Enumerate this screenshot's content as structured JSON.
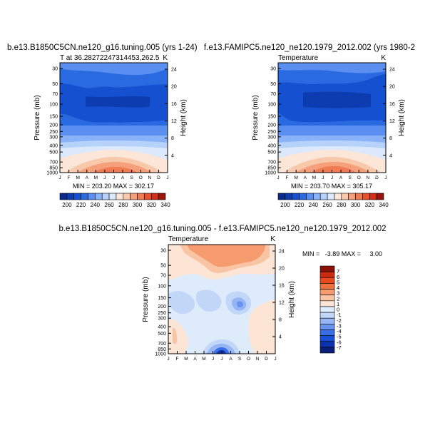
{
  "months": [
    "J",
    "F",
    "M",
    "A",
    "M",
    "J",
    "J",
    "A",
    "S",
    "O",
    "N",
    "D",
    "J"
  ],
  "pressure_ticks": [
    30,
    50,
    70,
    100,
    150,
    200,
    250,
    300,
    400,
    500,
    700,
    850,
    1000
  ],
  "height_ticks": [
    4,
    8,
    12,
    16,
    20,
    24
  ],
  "y_label_left": "Pressure (mb)",
  "y_label_right": "Height (km)",
  "chart_data": [
    {
      "type": "heatmap",
      "title": "b.e13.B1850C5CN.ne120_g16.tuning.005 (yrs 1-24)",
      "subtitle_left": "T at 36.28272247314453,262.5",
      "subtitle_right": "K",
      "xlabel": "",
      "ylabel": "Pressure (mb)",
      "ylabel_right": "Height (km)",
      "min": 203.2,
      "max": 302.17,
      "stats_label": "MIN = 203.20 MAX = 302.17",
      "levels": [
        200,
        210,
        220,
        230,
        240,
        250,
        260,
        270,
        280,
        290,
        300,
        310,
        320,
        330,
        340
      ],
      "colorbar_labels": [
        "200",
        "220",
        "240",
        "260",
        "280",
        "300",
        "320",
        "340"
      ],
      "colorbar_position": "bottom"
    },
    {
      "type": "heatmap",
      "title": "f.e13.FAMIPC5.ne120_ne120.1979_2012.002 (yrs 1980-2",
      "subtitle_left": "Temperature",
      "subtitle_right": "K",
      "xlabel": "",
      "ylabel": "Pressure (mb)",
      "ylabel_right": "Height (km)",
      "min": 203.7,
      "max": 305.17,
      "stats_label": "MIN = 203.70 MAX = 305.17",
      "levels": [
        200,
        210,
        220,
        230,
        240,
        250,
        260,
        270,
        280,
        290,
        300,
        310,
        320,
        330,
        340
      ],
      "colorbar_labels": [
        "200",
        "220",
        "240",
        "260",
        "280",
        "300",
        "320",
        "340"
      ],
      "colorbar_position": "bottom"
    },
    {
      "type": "heatmap",
      "title": "b.e13.B1850C5CN.ne120_g16.tuning.005 - f.e13.FAMIPC5.ne120_ne120.1979_2012.002",
      "subtitle_left": "Temperature",
      "subtitle_right": "K",
      "xlabel": "",
      "ylabel": "Pressure (mb)",
      "ylabel_right": "Height (km)",
      "min": -3.89,
      "max": 3.0,
      "stats_label": "MIN =   -3.89 MAX =     3.00",
      "levels": [
        -7,
        -6,
        -5,
        -4,
        -3,
        -2,
        -1,
        0,
        1,
        2,
        3,
        4,
        5,
        6,
        7
      ],
      "colorbar_labels": [
        "7",
        "6",
        "5",
        "4",
        "3",
        "2",
        "1",
        "0",
        "-1",
        "-2",
        "-3",
        "-4",
        "-5",
        "-6",
        "-7"
      ],
      "colorbar_position": "right"
    }
  ],
  "colors": {
    "scale": [
      "#0a2a8c",
      "#0d3cb0",
      "#1450d0",
      "#2a6ae0",
      "#5a8ef0",
      "#8ab2f8",
      "#b6d2fb",
      "#dce9fc",
      "#fbe6d8",
      "#f8c8aa",
      "#f5a07a",
      "#f07a52",
      "#e8532e",
      "#d03018",
      "#9a140c"
    ],
    "diff_scale": [
      "#0a1f7a",
      "#0d32b0",
      "#1850d8",
      "#3a6ee8",
      "#6a93ef",
      "#95b5f4",
      "#c2d7f8",
      "#deebfb",
      "#fde5d5",
      "#f9c4a4",
      "#f59b6e",
      "#f07040",
      "#e84a20",
      "#c82a12",
      "#8c100a"
    ]
  }
}
